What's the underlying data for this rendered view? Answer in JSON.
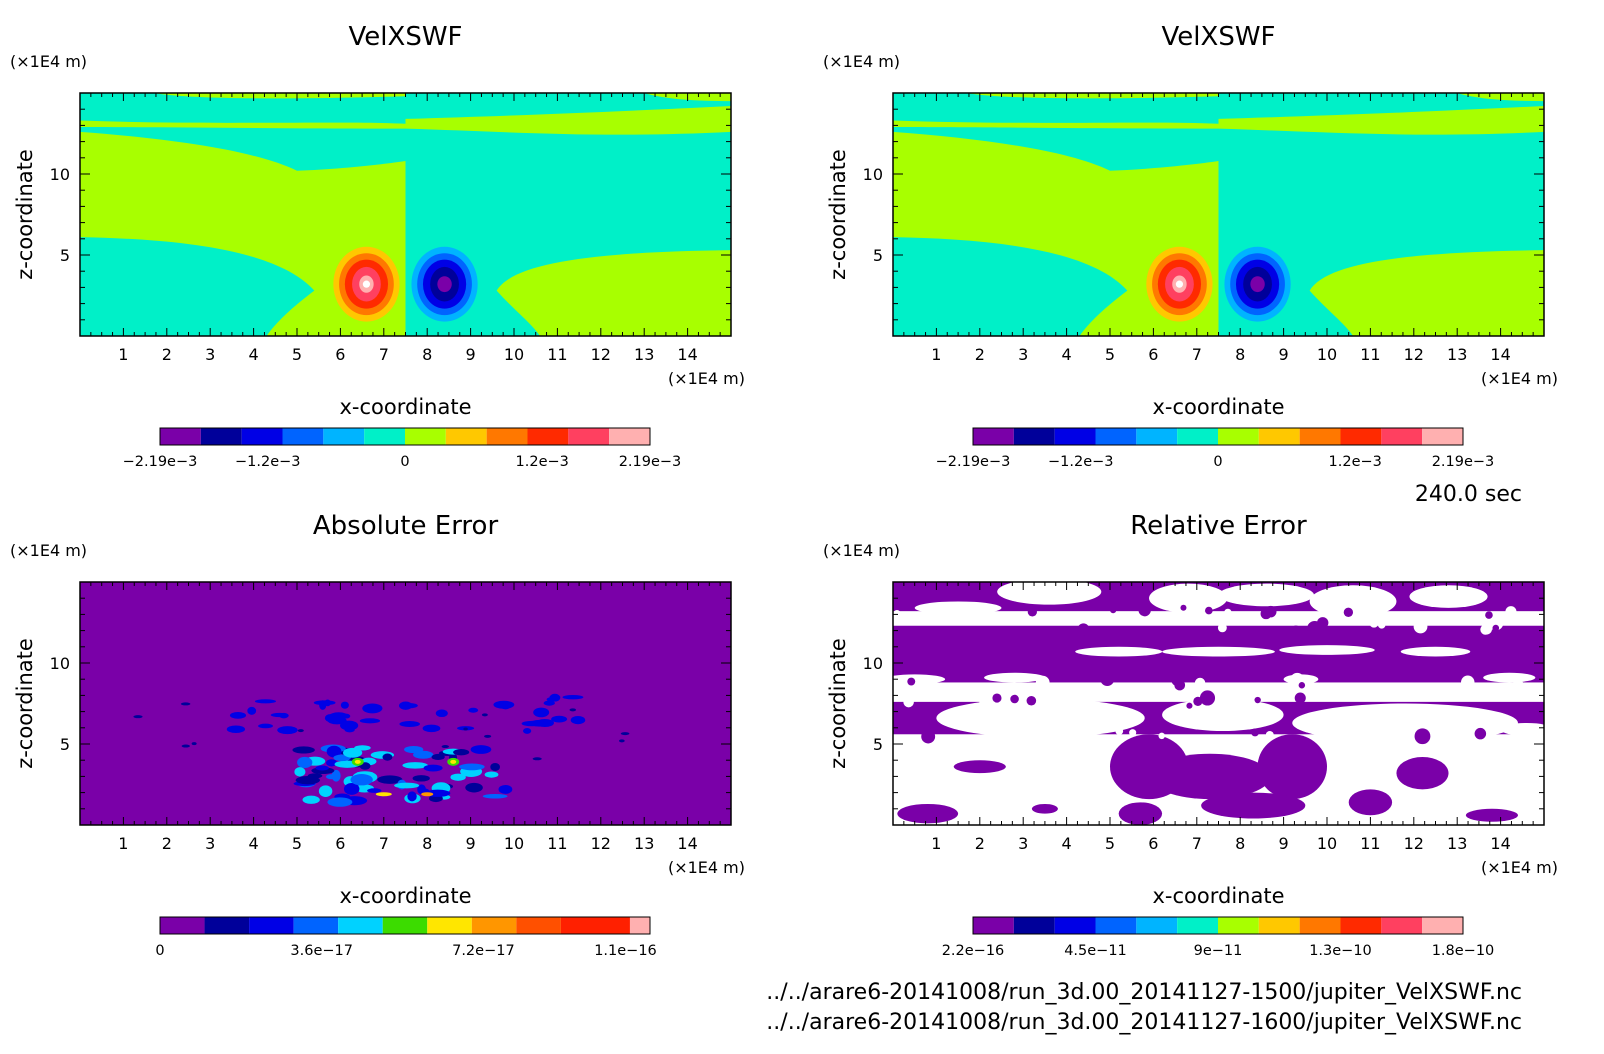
{
  "chart_data": [
    {
      "type": "heatmap",
      "title": "VelXSWF",
      "xlabel": "x-coordinate",
      "ylabel": "z-coordinate",
      "x_unit": "(×1E4 m)",
      "y_unit": "(×1E4 m)",
      "xlim": [
        0,
        15
      ],
      "ylim": [
        0,
        15
      ],
      "x_ticks": [
        1,
        2,
        3,
        4,
        5,
        6,
        7,
        8,
        9,
        10,
        11,
        12,
        13,
        14
      ],
      "y_ticks": [
        5,
        10
      ],
      "colorbar": {
        "colors": [
          "#7a00a8",
          "#00009a",
          "#0000e6",
          "#0064ff",
          "#00b4ff",
          "#00f0c8",
          "#a8ff00",
          "#ffc800",
          "#ff7800",
          "#ff2a00",
          "#ff4060",
          "#ffb0b0"
        ],
        "tick_labels": [
          "−2.19e−3",
          "−1.2e−3",
          "0",
          "1.2e−3",
          "2.19e−3"
        ],
        "tick_positions": [
          0,
          0.22,
          0.5,
          0.78,
          1.0
        ]
      },
      "features": [
        {
          "kind": "positive-vortex",
          "x": 6.6,
          "z": 3.2,
          "peak": "2.19e−3"
        },
        {
          "kind": "negative-vortex",
          "x": 8.4,
          "z": 3.2,
          "peak": "−2.19e−3"
        }
      ]
    },
    {
      "type": "heatmap",
      "title": "VelXSWF",
      "xlabel": "x-coordinate",
      "ylabel": "z-coordinate",
      "x_unit": "(×1E4 m)",
      "y_unit": "(×1E4 m)",
      "xlim": [
        0,
        15
      ],
      "ylim": [
        0,
        15
      ],
      "x_ticks": [
        1,
        2,
        3,
        4,
        5,
        6,
        7,
        8,
        9,
        10,
        11,
        12,
        13,
        14
      ],
      "y_ticks": [
        5,
        10
      ],
      "colorbar": {
        "colors": [
          "#7a00a8",
          "#00009a",
          "#0000e6",
          "#0064ff",
          "#00b4ff",
          "#00f0c8",
          "#a8ff00",
          "#ffc800",
          "#ff7800",
          "#ff2a00",
          "#ff4060",
          "#ffb0b0"
        ],
        "tick_labels": [
          "−2.19e−3",
          "−1.2e−3",
          "0",
          "1.2e−3",
          "2.19e−3"
        ],
        "tick_positions": [
          0,
          0.22,
          0.5,
          0.78,
          1.0
        ]
      },
      "features": [
        {
          "kind": "positive-vortex",
          "x": 6.6,
          "z": 3.2,
          "peak": "2.19e−3"
        },
        {
          "kind": "negative-vortex",
          "x": 8.4,
          "z": 3.2,
          "peak": "−2.19e−3"
        }
      ]
    },
    {
      "type": "heatmap",
      "title": "Absolute Error",
      "xlabel": "x-coordinate",
      "ylabel": "z-coordinate",
      "x_unit": "(×1E4 m)",
      "y_unit": "(×1E4 m)",
      "xlim": [
        0,
        15
      ],
      "ylim": [
        0,
        15
      ],
      "x_ticks": [
        1,
        2,
        3,
        4,
        5,
        6,
        7,
        8,
        9,
        10,
        11,
        12,
        13,
        14
      ],
      "y_ticks": [
        5,
        10
      ],
      "colorbar": {
        "colors": [
          "#7a00a8",
          "#00009a",
          "#0000e6",
          "#0064ff",
          "#00d2ff",
          "#3cdc00",
          "#ffe600",
          "#ff9600",
          "#ff5000",
          "#ff2000",
          "#ffb0b0"
        ],
        "tick_labels": [
          "0",
          "3.6e−17",
          "7.2e−17",
          "1.1e−16"
        ],
        "tick_positions": [
          0,
          0.33,
          0.66,
          0.95
        ]
      }
    },
    {
      "type": "heatmap",
      "title": "Relative Error",
      "xlabel": "x-coordinate",
      "ylabel": "z-coordinate",
      "x_unit": "(×1E4 m)",
      "y_unit": "(×1E4 m)",
      "xlim": [
        0,
        15
      ],
      "ylim": [
        0,
        15
      ],
      "x_ticks": [
        1,
        2,
        3,
        4,
        5,
        6,
        7,
        8,
        9,
        10,
        11,
        12,
        13,
        14
      ],
      "y_ticks": [
        5,
        10
      ],
      "colorbar": {
        "colors": [
          "#7a00a8",
          "#00009a",
          "#0000e6",
          "#0064ff",
          "#00b4ff",
          "#00f0c8",
          "#a8ff00",
          "#ffc800",
          "#ff7800",
          "#ff2a00",
          "#ff4060",
          "#ffb0b0"
        ],
        "tick_labels": [
          "2.2e−16",
          "4.5e−11",
          "9e−11",
          "1.3e−10",
          "1.8e−10"
        ],
        "tick_positions": [
          0,
          0.25,
          0.5,
          0.75,
          1.0
        ]
      }
    }
  ],
  "time_label": "240.0 sec",
  "file_paths": [
    "../../arare6-20141008/run_3d.00_20141127-1500/jupiter_VelXSWF.nc",
    "../../arare6-20141008/run_3d.00_20141127-1600/jupiter_VelXSWF.nc"
  ]
}
